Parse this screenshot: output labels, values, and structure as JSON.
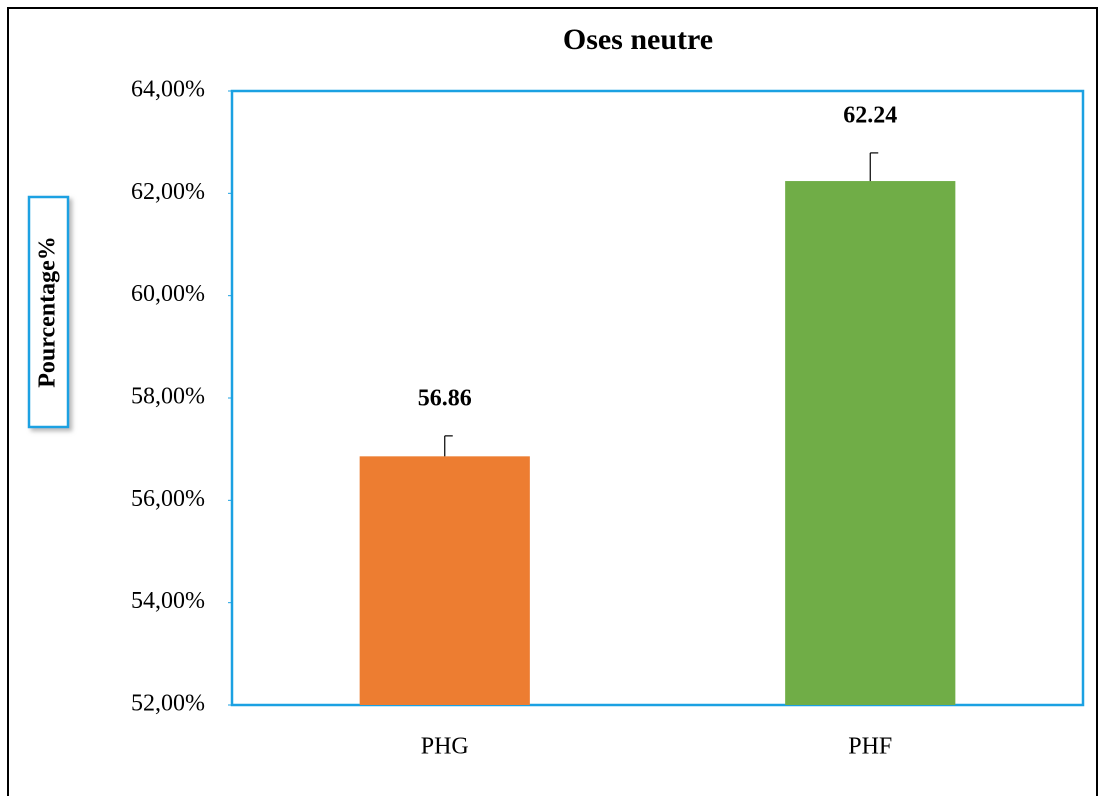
{
  "chart_data": {
    "type": "bar",
    "title": "Oses neutre",
    "y_label": "Pourcentage%",
    "categories": [
      "PHG",
      "PHF"
    ],
    "values": [
      56.86,
      62.24
    ],
    "errors": [
      0.4,
      0.55
    ],
    "colors": [
      "#ed7d31",
      "#70ad47"
    ],
    "ylim": [
      52,
      64
    ],
    "yticks": [
      {
        "value": 52,
        "label": "52,00%"
      },
      {
        "value": 54,
        "label": "54,00%"
      },
      {
        "value": 56,
        "label": "56,00%"
      },
      {
        "value": 58,
        "label": "58,00%"
      },
      {
        "value": 60,
        "label": "60,00%"
      },
      {
        "value": 62,
        "label": "62,00%"
      },
      {
        "value": 64,
        "label": "64,00%"
      }
    ],
    "grid": false
  }
}
